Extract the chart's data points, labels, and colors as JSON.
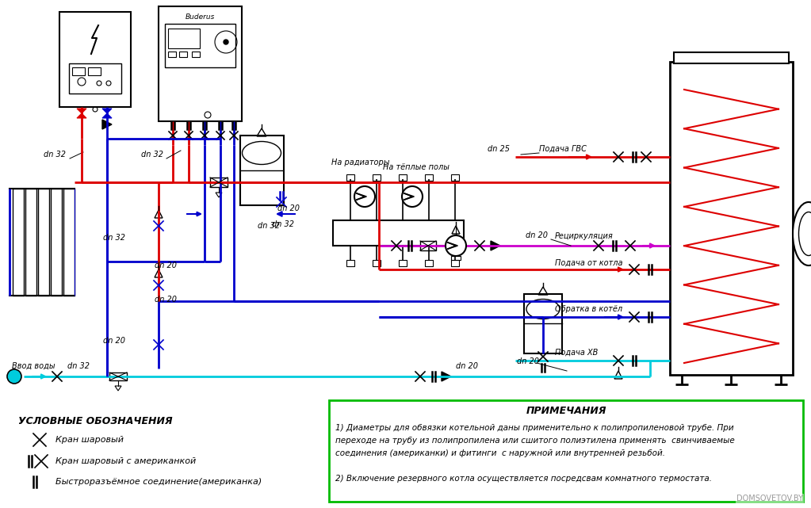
{
  "bg_color": "#ffffff",
  "line_red": "#dd0000",
  "line_blue": "#0000cc",
  "line_cyan": "#00ccdd",
  "line_magenta": "#cc00cc",
  "line_black": "#000000",
  "line_gray": "#666666",
  "green_box": "#00bb00",
  "legend_title": "УСЛОВНЫЕ ОБОЗНАЧЕНИЯ",
  "notes_title": "ПРИМЕЧАНИЯ",
  "note1": "1) Диаметры для обвязки котельной даны применительно к полипропиленовой трубе. При\nпереходе на трубу из полипропилена или сшитого полиэтилена применять  свинчиваемые\nсоединения (американки) и фитинги  с наружной или внутренней резьбой.",
  "note2": "2) Включение резервного котла осуществляется посредсвам комнатного термостата.",
  "legend1": "Кран шаровый",
  "legend2": "Кран шаровый с американкой",
  "legend3": "Быстроразъёмное соединение(американка)",
  "label_radiators": "На радиаторы",
  "label_warm_floors": "На тёплые полы",
  "label_hot_water": "Подача ГВС",
  "label_recirc": "Рециркуляция",
  "label_from_boiler": "Подача от котла",
  "label_return": "Обратка в котёл",
  "label_cold_water": "Подача ХВ",
  "label_water_inlet": "Ввод воды",
  "watermark": "DOMSOVETOV.BY",
  "buderus_label": "Buderus"
}
